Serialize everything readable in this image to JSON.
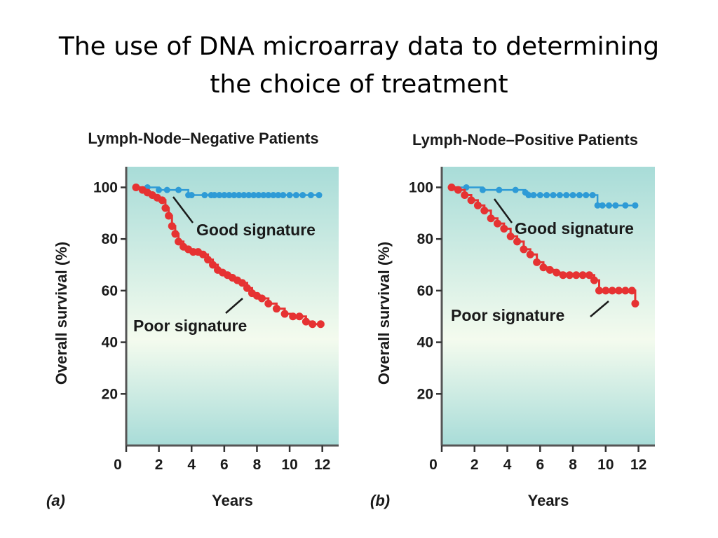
{
  "slide": {
    "title_line1": "The use of DNA microarray data to determining",
    "title_line2": "the choice of treatment"
  },
  "colors": {
    "good": "#2e9bd6",
    "poor": "#e63232",
    "plot_bg_edge": "#a8dcd8",
    "plot_bg_center": "#f4fbee",
    "axis": "#555555"
  },
  "chart_data": [
    {
      "type": "line",
      "panel_label": "(a)",
      "title": "Lymph-Node–Negative Patients",
      "xlabel": "Years",
      "ylabel": "Overall survival (%)",
      "xlim": [
        0,
        13
      ],
      "ylim": [
        0,
        108
      ],
      "xticks": [
        "0",
        "2",
        "4",
        "6",
        "8",
        "10",
        "12"
      ],
      "yticks": [
        "20",
        "40",
        "60",
        "80",
        "100"
      ],
      "grid": false,
      "series": [
        {
          "name": "Good signature",
          "color_key": "good",
          "points": [
            [
              0.6,
              100
            ],
            [
              1.3,
              100
            ],
            [
              2.0,
              99
            ],
            [
              2.5,
              99
            ],
            [
              3.2,
              99
            ],
            [
              3.8,
              97
            ],
            [
              4.0,
              97
            ],
            [
              4.8,
              97
            ],
            [
              5.2,
              97
            ],
            [
              5.4,
              97
            ],
            [
              5.7,
              97
            ],
            [
              6.0,
              97
            ],
            [
              6.3,
              97
            ],
            [
              6.6,
              97
            ],
            [
              6.9,
              97
            ],
            [
              7.2,
              97
            ],
            [
              7.5,
              97
            ],
            [
              7.8,
              97
            ],
            [
              8.1,
              97
            ],
            [
              8.4,
              97
            ],
            [
              8.7,
              97
            ],
            [
              9.0,
              97
            ],
            [
              9.3,
              97
            ],
            [
              9.6,
              97
            ],
            [
              10.0,
              97
            ],
            [
              10.4,
              97
            ],
            [
              10.8,
              97
            ],
            [
              11.3,
              97
            ],
            [
              11.8,
              97
            ]
          ]
        },
        {
          "name": "Poor signature",
          "color_key": "poor",
          "points": [
            [
              0.6,
              100
            ],
            [
              1.0,
              99
            ],
            [
              1.3,
              98
            ],
            [
              1.6,
              97
            ],
            [
              1.9,
              96
            ],
            [
              2.2,
              95
            ],
            [
              2.4,
              92
            ],
            [
              2.6,
              89
            ],
            [
              2.8,
              85
            ],
            [
              3.0,
              82
            ],
            [
              3.2,
              79
            ],
            [
              3.5,
              77
            ],
            [
              3.8,
              76
            ],
            [
              4.1,
              75
            ],
            [
              4.4,
              75
            ],
            [
              4.7,
              74
            ],
            [
              5.0,
              72
            ],
            [
              5.3,
              70
            ],
            [
              5.6,
              68
            ],
            [
              5.9,
              67
            ],
            [
              6.2,
              66
            ],
            [
              6.5,
              65
            ],
            [
              6.8,
              64
            ],
            [
              7.1,
              63
            ],
            [
              7.4,
              61
            ],
            [
              7.7,
              59
            ],
            [
              8.0,
              58
            ],
            [
              8.3,
              57
            ],
            [
              8.7,
              55
            ],
            [
              9.2,
              53
            ],
            [
              9.7,
              51
            ],
            [
              10.2,
              50
            ],
            [
              10.6,
              50
            ],
            [
              11.0,
              48
            ],
            [
              11.4,
              47
            ],
            [
              11.9,
              47
            ]
          ]
        }
      ],
      "annotations": [
        {
          "text": "Good signature",
          "series": "Good signature"
        },
        {
          "text": "Poor signature",
          "series": "Poor signature"
        }
      ]
    },
    {
      "type": "line",
      "panel_label": "(b)",
      "title": "Lymph-Node–Positive Patients",
      "xlabel": "Years",
      "ylabel": "Overall survival (%)",
      "xlim": [
        0,
        13
      ],
      "ylim": [
        0,
        108
      ],
      "xticks": [
        "0",
        "2",
        "4",
        "6",
        "8",
        "10",
        "12"
      ],
      "yticks": [
        "20",
        "40",
        "60",
        "80",
        "100"
      ],
      "grid": false,
      "series": [
        {
          "name": "Good signature",
          "color_key": "good",
          "points": [
            [
              0.6,
              100
            ],
            [
              1.5,
              100
            ],
            [
              2.5,
              99
            ],
            [
              3.5,
              99
            ],
            [
              4.5,
              99
            ],
            [
              5.1,
              98
            ],
            [
              5.3,
              97
            ],
            [
              5.6,
              97
            ],
            [
              6.0,
              97
            ],
            [
              6.4,
              97
            ],
            [
              6.8,
              97
            ],
            [
              7.2,
              97
            ],
            [
              7.6,
              97
            ],
            [
              8.0,
              97
            ],
            [
              8.4,
              97
            ],
            [
              8.8,
              97
            ],
            [
              9.2,
              97
            ],
            [
              9.5,
              93
            ],
            [
              9.8,
              93
            ],
            [
              10.2,
              93
            ],
            [
              10.6,
              93
            ],
            [
              11.2,
              93
            ],
            [
              11.8,
              93
            ]
          ]
        },
        {
          "name": "Poor signature",
          "color_key": "poor",
          "points": [
            [
              0.6,
              100
            ],
            [
              1.0,
              99
            ],
            [
              1.4,
              97
            ],
            [
              1.8,
              95
            ],
            [
              2.2,
              93
            ],
            [
              2.6,
              91
            ],
            [
              3.0,
              88
            ],
            [
              3.4,
              86
            ],
            [
              3.8,
              84
            ],
            [
              4.2,
              81
            ],
            [
              4.6,
              79
            ],
            [
              5.0,
              76
            ],
            [
              5.4,
              74
            ],
            [
              5.8,
              71
            ],
            [
              6.2,
              69
            ],
            [
              6.6,
              68
            ],
            [
              7.0,
              67
            ],
            [
              7.4,
              66
            ],
            [
              7.8,
              66
            ],
            [
              8.2,
              66
            ],
            [
              8.6,
              66
            ],
            [
              9.0,
              66
            ],
            [
              9.3,
              64
            ],
            [
              9.6,
              60
            ],
            [
              10.0,
              60
            ],
            [
              10.4,
              60
            ],
            [
              10.8,
              60
            ],
            [
              11.2,
              60
            ],
            [
              11.6,
              60
            ],
            [
              11.8,
              55
            ]
          ]
        }
      ],
      "annotations": [
        {
          "text": "Good signature",
          "series": "Good signature"
        },
        {
          "text": "Poor signature",
          "series": "Poor signature"
        }
      ]
    }
  ]
}
